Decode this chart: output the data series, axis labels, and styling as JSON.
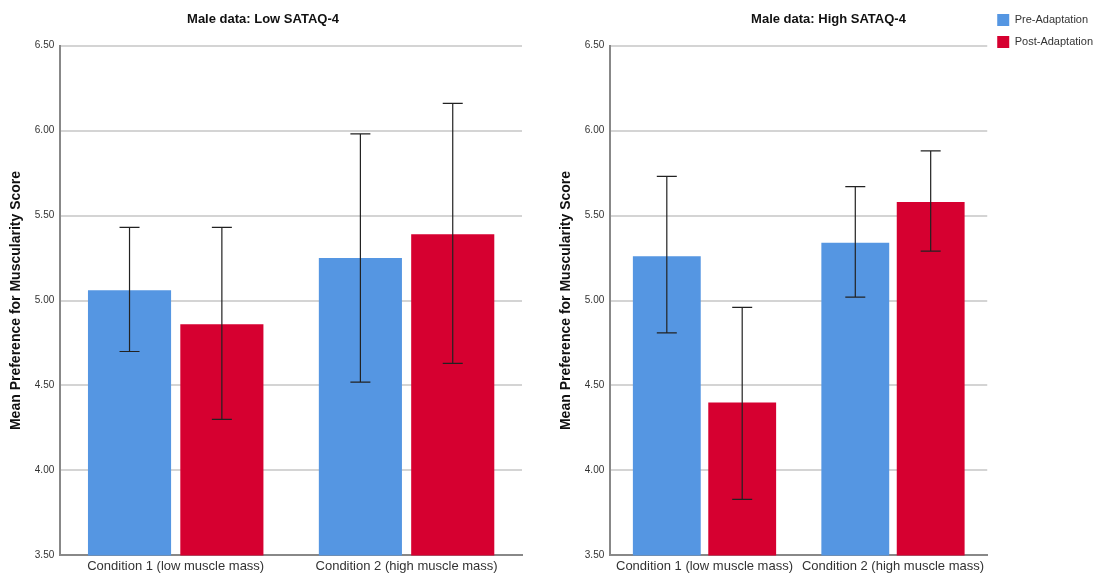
{
  "chart_data": [
    {
      "type": "bar",
      "title": "Male data: Low SATAQ-4",
      "ylabel": "Mean Preference for Muscularity Score",
      "categories": [
        "Condition 1 (low muscle mass)",
        "Condition 2 (high muscle mass)"
      ],
      "ylim": [
        3.5,
        6.5
      ],
      "yticks": [
        {
          "value": 3.5,
          "label": "3.50"
        },
        {
          "value": 4,
          "label": "4.00"
        },
        {
          "value": 4.5,
          "label": "4.50"
        },
        {
          "value": 5,
          "label": "5.00"
        },
        {
          "value": 5.5,
          "label": "5.50"
        },
        {
          "value": 6,
          "label": "6.00"
        },
        {
          "value": 6.5,
          "label": "6.50"
        }
      ],
      "grid": "y",
      "legend": false,
      "series": [
        {
          "color": "#5596e2",
          "values": [
            5.06,
            5.25
          ],
          "errors": [
            [
              4.7,
              5.43
            ],
            [
              4.52,
              5.98
            ]
          ]
        },
        {
          "color": "#d60030",
          "values": [
            4.86,
            5.39
          ],
          "errors": [
            [
              4.3,
              5.43
            ],
            [
              4.63,
              6.16
            ]
          ]
        }
      ]
    },
    {
      "type": "bar",
      "title": "Male data: High SATAQ-4",
      "ylabel": "Mean Preference for Muscularity Score",
      "categories": [
        "Condition 1 (low muscle mass)",
        "Condition 2 (high muscle mass)"
      ],
      "ylim": [
        3.5,
        6.5
      ],
      "yticks": [
        {
          "value": 3.5,
          "label": "3.50"
        },
        {
          "value": 4,
          "label": "4.00"
        },
        {
          "value": 4.5,
          "label": "4.50"
        },
        {
          "value": 5,
          "label": "5.00"
        },
        {
          "value": 5.5,
          "label": "5.50"
        },
        {
          "value": 6,
          "label": "6.00"
        },
        {
          "value": 6.5,
          "label": "6.50"
        }
      ],
      "grid": "y",
      "legend": "top right",
      "series": [
        {
          "name": "Pre-Adaptation",
          "color": "#5596e2",
          "values": [
            5.26,
            5.34
          ],
          "errors": [
            [
              4.81,
              5.73
            ],
            [
              5.02,
              5.67
            ]
          ]
        },
        {
          "name": "Post-Adaptation",
          "color": "#d60030",
          "values": [
            4.4,
            5.58
          ],
          "errors": [
            [
              3.83,
              4.96
            ],
            [
              5.29,
              5.88
            ]
          ]
        }
      ]
    }
  ]
}
